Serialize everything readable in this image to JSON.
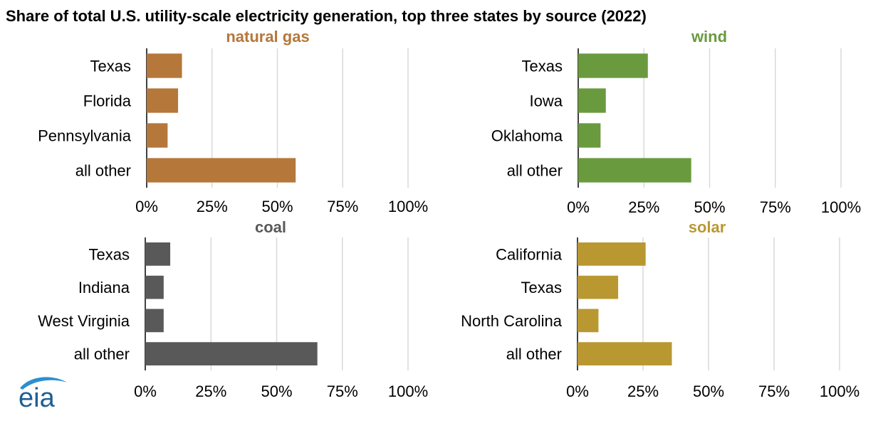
{
  "title": "Share of total U.S. utility-scale electricity generation, top three states by source (2022)",
  "logo": "eia",
  "chart_data": [
    {
      "type": "bar",
      "orientation": "horizontal",
      "title": "natural gas",
      "color": "#b5773a",
      "categories": [
        "Texas",
        "Florida",
        "Pennsylvania",
        "all other"
      ],
      "values": [
        13.5,
        12,
        8,
        57
      ],
      "xlim": [
        0,
        100
      ],
      "xticks": [
        "0%",
        "25%",
        "50%",
        "75%",
        "100%"
      ],
      "grid": true
    },
    {
      "type": "bar",
      "orientation": "horizontal",
      "title": "wind",
      "color": "#6a9a3e",
      "categories": [
        "Texas",
        "Iowa",
        "Oklahoma",
        "all other"
      ],
      "values": [
        26.5,
        10.5,
        8.5,
        43
      ],
      "xlim": [
        0,
        100
      ],
      "xticks": [
        "0%",
        "25%",
        "50%",
        "75%",
        "100%"
      ],
      "grid": true
    },
    {
      "type": "bar",
      "orientation": "horizontal",
      "title": "coal",
      "color": "#595959",
      "categories": [
        "Texas",
        "Indiana",
        "West Virginia",
        "all other"
      ],
      "values": [
        9.5,
        7,
        7,
        65.5
      ],
      "xlim": [
        0,
        100
      ],
      "xticks": [
        "0%",
        "25%",
        "50%",
        "75%",
        "100%"
      ],
      "grid": true
    },
    {
      "type": "bar",
      "orientation": "horizontal",
      "title": "solar",
      "color": "#b99832",
      "categories": [
        "California",
        "Texas",
        "North Carolina",
        "all other"
      ],
      "values": [
        26,
        15.5,
        8,
        36
      ],
      "xlim": [
        0,
        100
      ],
      "xticks": [
        "0%",
        "25%",
        "50%",
        "75%",
        "100%"
      ],
      "grid": true
    }
  ]
}
